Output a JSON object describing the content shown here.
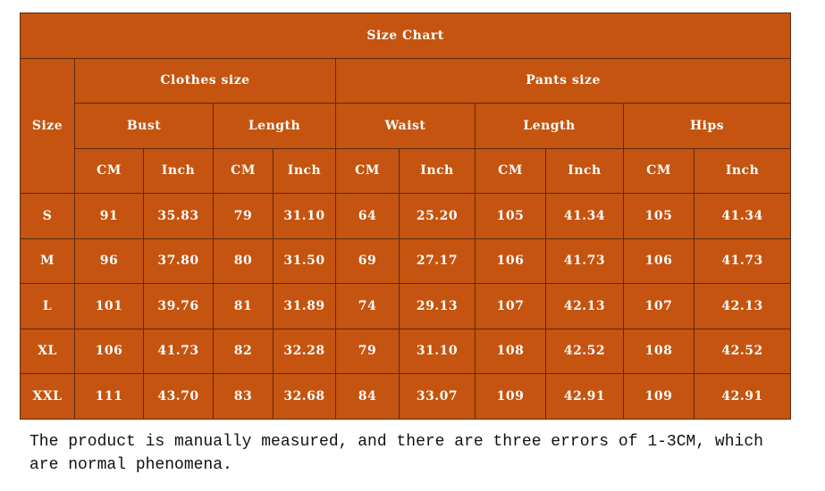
{
  "table": {
    "title": "Size Chart",
    "size_header": "Size",
    "groups": [
      "Clothes size",
      "Pants size"
    ],
    "measures": [
      "Bust",
      "Length",
      "Waist",
      "Length",
      "Hips"
    ],
    "units": [
      "CM",
      "Inch",
      "CM",
      "Inch",
      "CM",
      "Inch",
      "CM",
      "Inch",
      "CM",
      "Inch"
    ],
    "rows": [
      [
        "S",
        "91",
        "35.83",
        "79",
        "31.10",
        "64",
        "25.20",
        "105",
        "41.34",
        "105",
        "41.34"
      ],
      [
        "M",
        "96",
        "37.80",
        "80",
        "31.50",
        "69",
        "27.17",
        "106",
        "41.73",
        "106",
        "41.73"
      ],
      [
        "L",
        "101",
        "39.76",
        "81",
        "31.89",
        "74",
        "29.13",
        "107",
        "42.13",
        "107",
        "42.13"
      ],
      [
        "XL",
        "106",
        "41.73",
        "82",
        "32.28",
        "79",
        "31.10",
        "108",
        "42.52",
        "108",
        "42.52"
      ],
      [
        "XXL",
        "111",
        "43.70",
        "83",
        "32.68",
        "84",
        "33.07",
        "109",
        "42.91",
        "109",
        "42.91"
      ]
    ]
  },
  "note": "The product is manually measured, and there are three errors of 1-3CM, which are normal phenomena."
}
